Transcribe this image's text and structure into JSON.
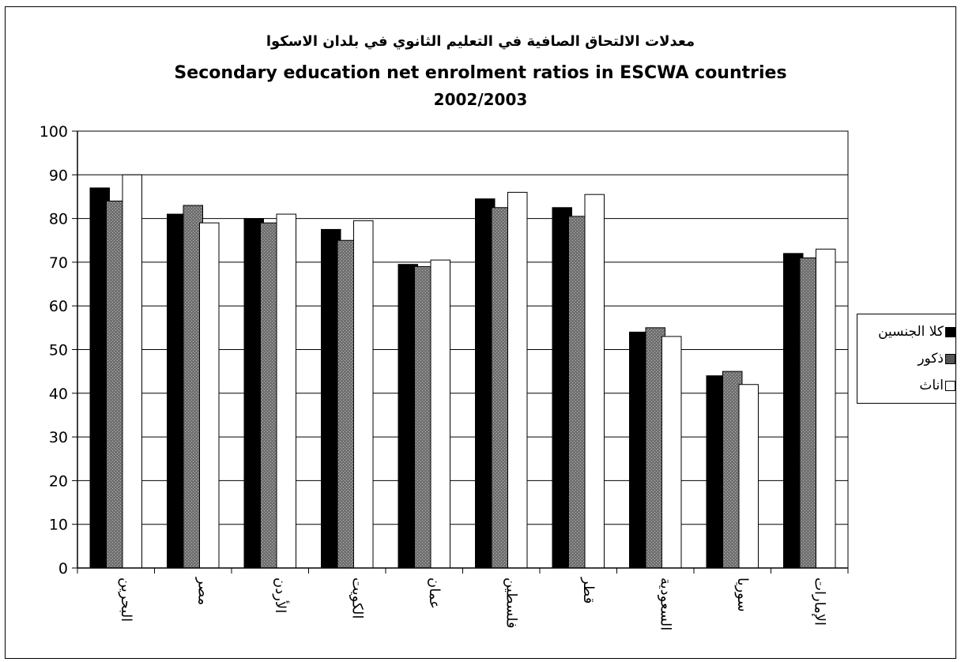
{
  "chart_data": {
    "type": "bar",
    "title_ar": "معدلات الالتحاق الصافية في التعليم الثانوي في بلدان الاسكوا",
    "title": "Secondary education net enrolment ratios in ESCWA countries",
    "subtitle": "2002/2003",
    "xlabel": "",
    "ylabel": "",
    "ylim": [
      0,
      100
    ],
    "yticks": [
      0,
      10,
      20,
      30,
      40,
      50,
      60,
      70,
      80,
      90,
      100
    ],
    "grid": true,
    "legend_position": "right",
    "categories": [
      "البحرين",
      "مصر",
      "الأردن",
      "الكويت",
      "عمان",
      "فلسطين",
      "قطر",
      "السعودية",
      "سوريا",
      "الإمارات"
    ],
    "series": [
      {
        "name": "كلا الجنسين",
        "color": "#000000",
        "values": [
          87,
          81,
          80,
          77.5,
          69.5,
          84.5,
          82.5,
          54,
          44,
          72
        ]
      },
      {
        "name": "ذكور",
        "color": "#555555",
        "values": [
          84,
          83,
          79,
          75,
          69,
          82.5,
          80.5,
          55,
          45,
          71
        ]
      },
      {
        "name": "اناث",
        "color": "#ffffff",
        "values": [
          90,
          79,
          81,
          79.5,
          70.5,
          86,
          85.5,
          53,
          42,
          73
        ]
      }
    ]
  }
}
